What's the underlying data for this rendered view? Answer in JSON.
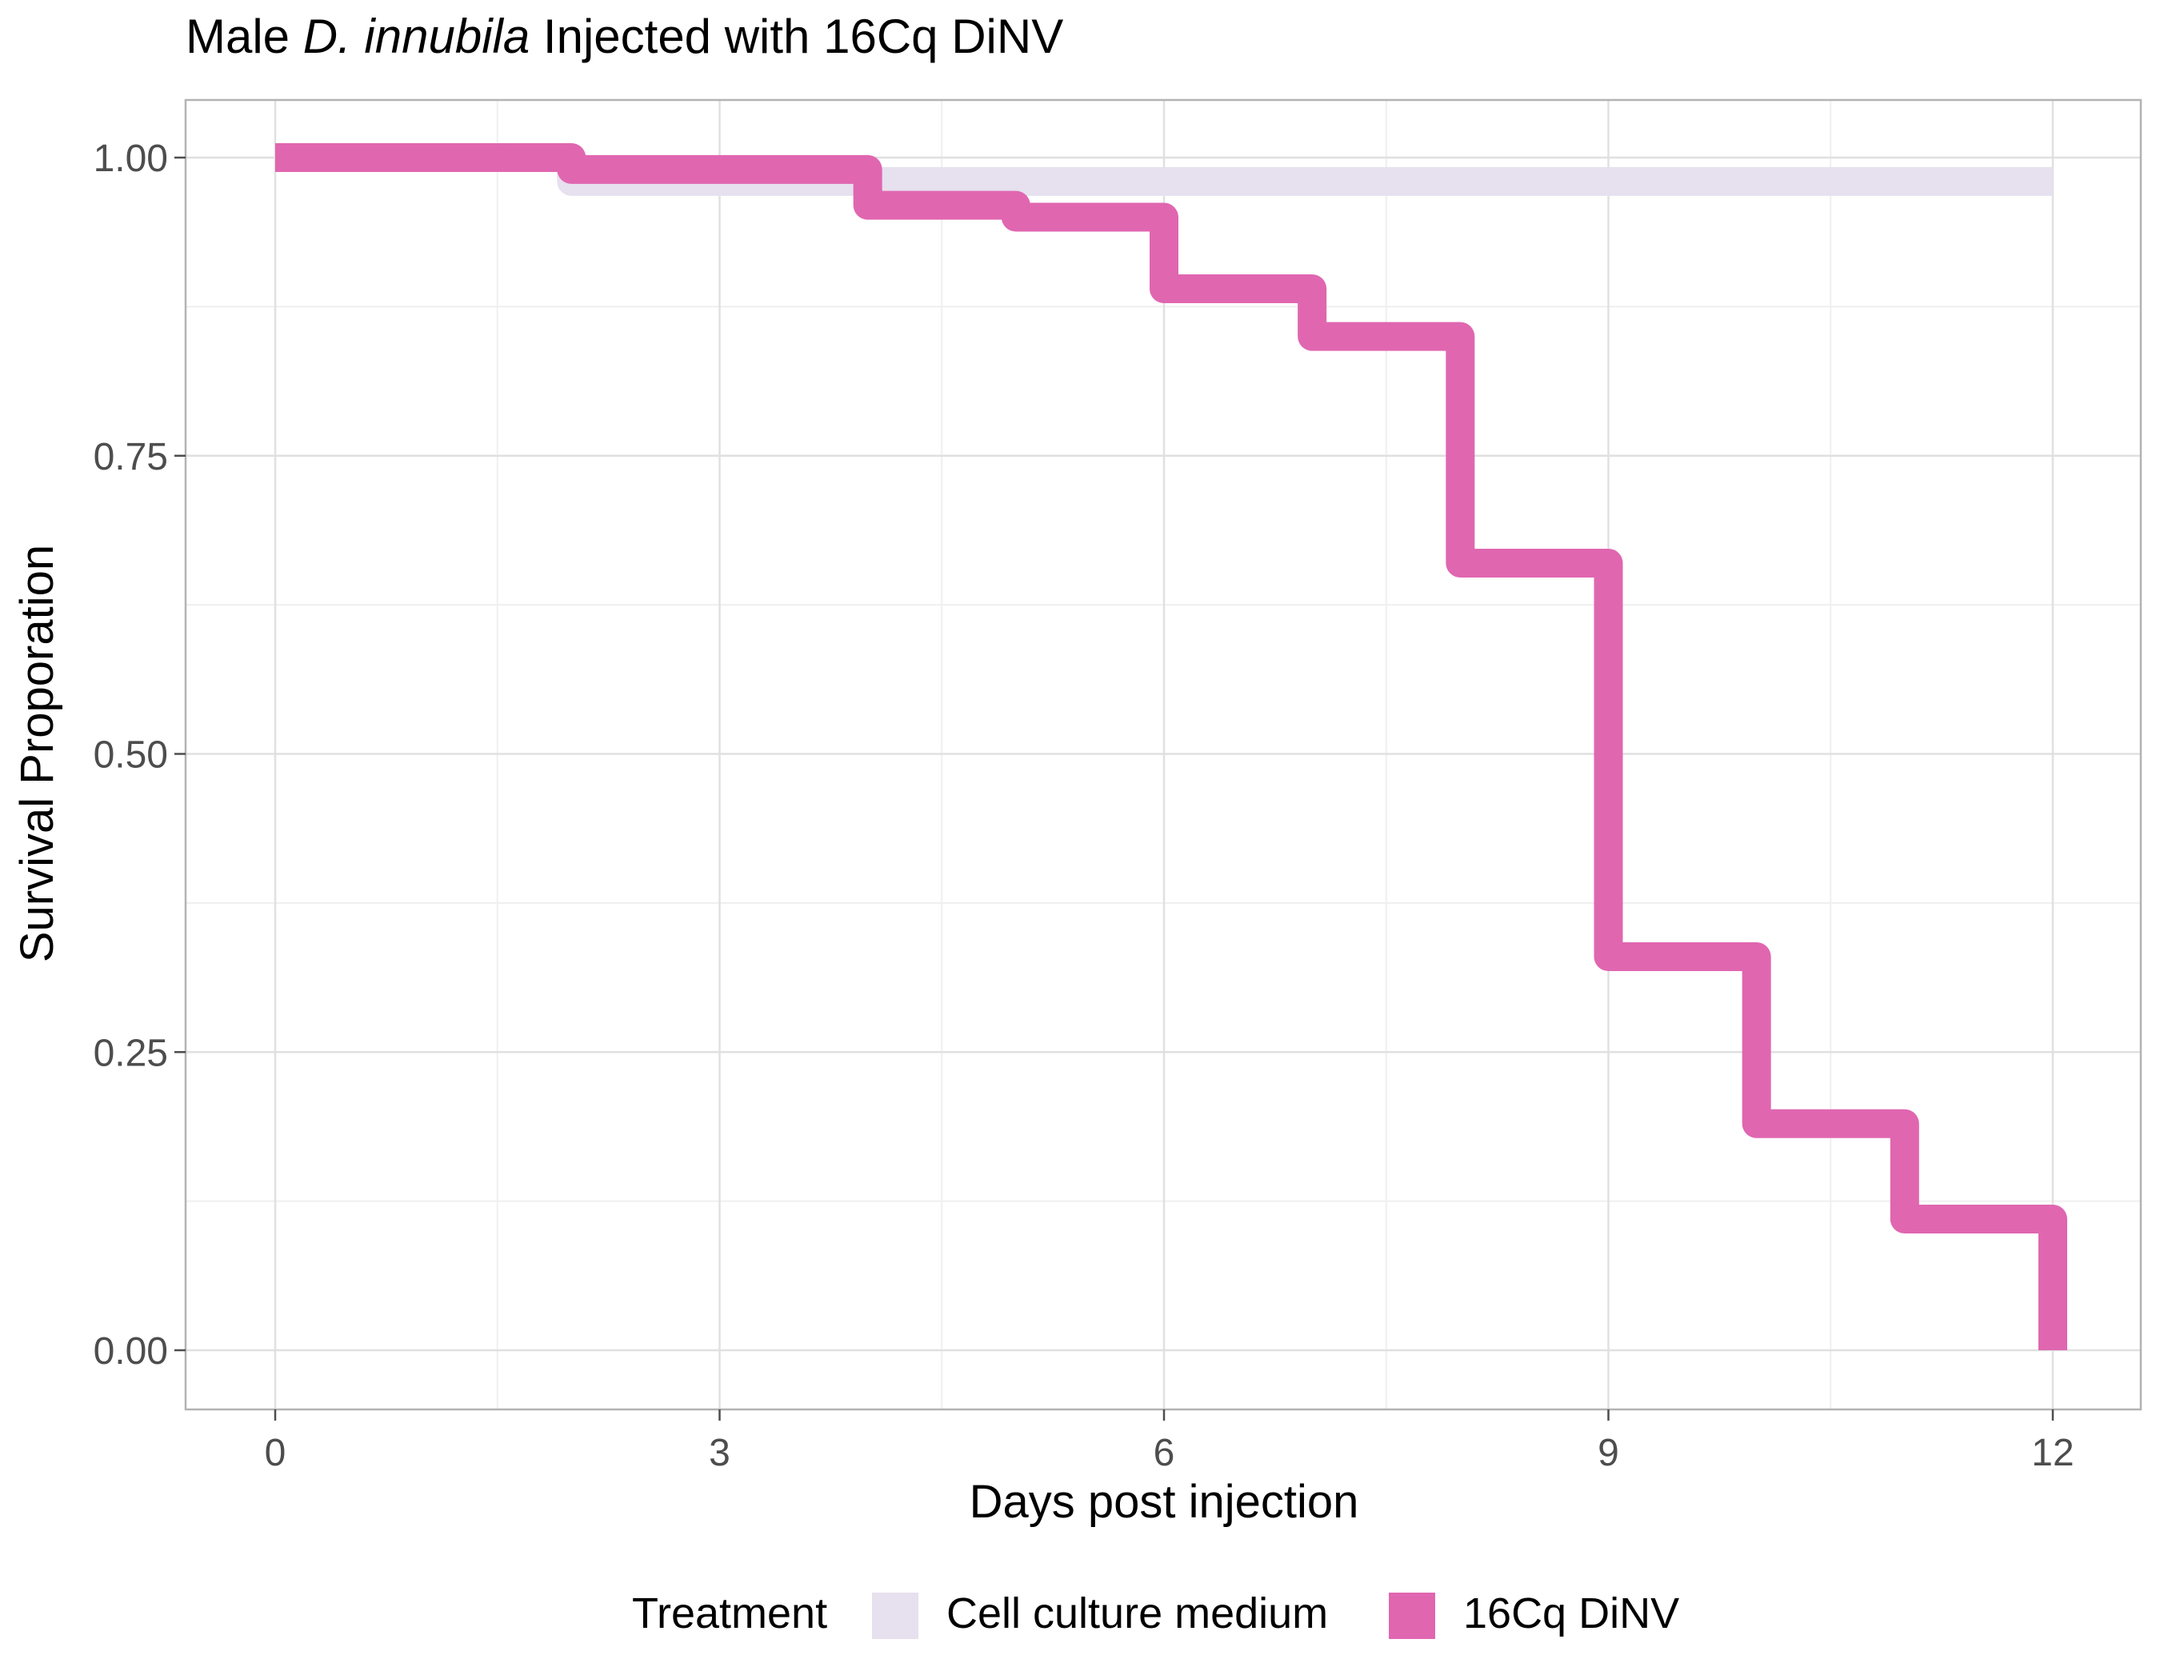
{
  "chart_data": {
    "type": "line",
    "step": true,
    "title": {
      "prefix": "Male ",
      "italic": "D. innubila",
      "suffix": " Injected with 16Cq DiNV"
    },
    "xlabel": "Days post injection",
    "ylabel": "Survival Proporation",
    "xlim": [
      -1,
      21
    ],
    "ylim": [
      -0.05,
      1.05
    ],
    "xticks": [
      0,
      3,
      6,
      9,
      12
    ],
    "xtick_labels": [
      "0",
      "3",
      "6",
      "9",
      "12"
    ],
    "yticks": [
      0,
      0.25,
      0.5,
      0.75,
      1
    ],
    "ytick_labels": [
      "0.00",
      "0.25",
      "0.50",
      "0.75",
      "1.00"
    ],
    "grid": true,
    "legend": {
      "title": "Treatment",
      "position": "bottom"
    },
    "series": [
      {
        "name": "Cell culture medium",
        "color": "#E6E0EF",
        "x": [
          0,
          2,
          12
        ],
        "y": [
          1.0,
          0.98,
          0.98
        ],
        "end_x": 12
      },
      {
        "name": "16Cq DiNV",
        "color": "#E066B0",
        "x": [
          0,
          2,
          4,
          5,
          6,
          7,
          8,
          9,
          10,
          11,
          12
        ],
        "y": [
          1.0,
          0.99,
          0.96,
          0.95,
          0.89,
          0.85,
          0.66,
          0.33,
          0.19,
          0.11,
          0.0
        ],
        "end_x": 12
      }
    ]
  }
}
